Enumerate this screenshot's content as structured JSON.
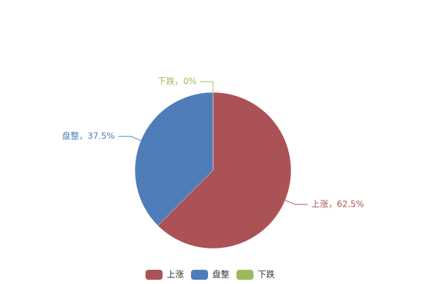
{
  "chart_data": {
    "type": "pie",
    "categories": [
      "上涨",
      "盘整",
      "下跌"
    ],
    "values": [
      62.5,
      37.5,
      0
    ],
    "value_labels": [
      "上涨，62.5%",
      "盘整，37.5%",
      "下跌，0%"
    ],
    "colors": [
      "#ab5257",
      "#4e7dba",
      "#9bbb59"
    ],
    "legend": "bottom"
  }
}
